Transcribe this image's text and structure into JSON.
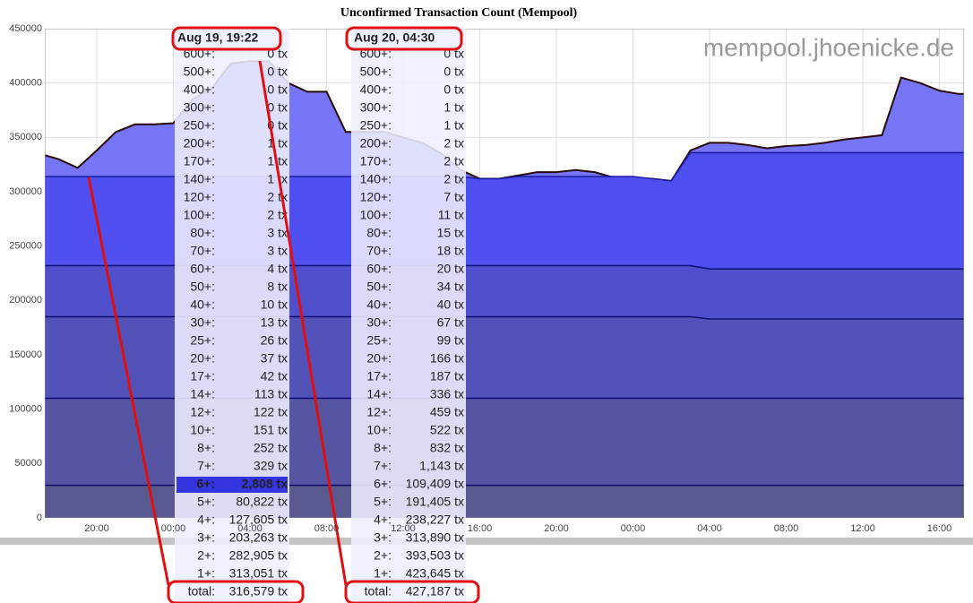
{
  "chart_data": {
    "type": "area",
    "title": "Unconfirmed Transaction Count (Mempool)",
    "watermark": "mempool.jhoenicke.de",
    "categories": [
      null,
      null,
      null,
      "20:00",
      null,
      null,
      null,
      "00:00",
      null,
      null,
      null,
      "04:00",
      null,
      null,
      null,
      "08:00",
      null,
      null,
      null,
      "12:00",
      null,
      null,
      null,
      "16:00",
      null,
      null,
      null,
      "20:00",
      null,
      null,
      null,
      "00:00",
      null,
      null,
      null,
      "04:00",
      null,
      null,
      null,
      "08:00",
      null,
      null,
      null,
      "12:00",
      null,
      null,
      null,
      "16:00",
      null
    ],
    "series": [
      {
        "color": "#7575f5",
        "line_color": "#2a0a0a",
        "values": [
          335000,
          330000,
          322000,
          338000,
          355000,
          362000,
          362000,
          363000,
          385000,
          395000,
          418000,
          420000,
          420000,
          400000,
          392000,
          392000,
          355000,
          355000,
          355000,
          350000,
          345000,
          335000,
          320000,
          312000,
          312000,
          315000,
          318000,
          318000,
          320000,
          318000,
          313000,
          313000,
          312000,
          310000,
          338000,
          345000,
          345000,
          343000,
          340000,
          342000,
          343000,
          345000,
          348000,
          350000,
          352000,
          405000,
          400000,
          393000,
          390000
        ]
      },
      {
        "color": "#4f4ff0",
        "line_color": "#1a1aa0",
        "values": [
          314000,
          314000,
          314000,
          314000,
          314000,
          314000,
          314000,
          314000,
          314000,
          314000,
          314000,
          314000,
          314000,
          314000,
          314000,
          314000,
          314000,
          314000,
          314000,
          314000,
          314000,
          314000,
          314000,
          312000,
          312000,
          314000,
          314000,
          314000,
          314000,
          314000,
          314000,
          314000,
          312000,
          310000,
          336000,
          336000,
          336000,
          336000,
          336000,
          336000,
          336000,
          336000,
          336000,
          336000,
          336000,
          336000,
          336000,
          336000,
          336000
        ]
      },
      {
        "color": "#5050cc",
        "line_color": "#10107a",
        "values": [
          232000,
          232000,
          232000,
          232000,
          232000,
          232000,
          232000,
          232000,
          232000,
          232000,
          232000,
          232000,
          232000,
          232000,
          232000,
          232000,
          232000,
          232000,
          232000,
          232000,
          232000,
          232000,
          232000,
          232000,
          232000,
          232000,
          232000,
          232000,
          232000,
          232000,
          232000,
          232000,
          232000,
          232000,
          232000,
          229000,
          229000,
          229000,
          229000,
          229000,
          229000,
          229000,
          229000,
          229000,
          229000,
          229000,
          229000,
          229000,
          229000
        ]
      },
      {
        "color": "#5252b8",
        "line_color": "#10106e",
        "values": [
          185000,
          185000,
          185000,
          185000,
          185000,
          185000,
          185000,
          185000,
          185000,
          185000,
          185000,
          185000,
          185000,
          185000,
          185000,
          185000,
          185000,
          185000,
          185000,
          185000,
          185000,
          185000,
          185000,
          185000,
          185000,
          185000,
          185000,
          185000,
          185000,
          185000,
          185000,
          185000,
          185000,
          185000,
          185000,
          183000,
          183000,
          183000,
          183000,
          183000,
          183000,
          183000,
          183000,
          183000,
          183000,
          183000,
          183000,
          183000,
          183000
        ]
      },
      {
        "color": "#5555a4",
        "line_color": "#0c0c70",
        "values": [
          110000,
          110000,
          110000,
          110000,
          110000,
          110000,
          110000,
          110000,
          110000,
          110000,
          110000,
          110000,
          110000,
          110000,
          110000,
          110000,
          110000,
          110000,
          110000,
          110000,
          110000,
          110000,
          110000,
          110000,
          110000,
          110000,
          110000,
          110000,
          110000,
          110000,
          110000,
          110000,
          110000,
          110000,
          110000,
          110000,
          110000,
          110000,
          110000,
          110000,
          110000,
          110000,
          110000,
          110000,
          110000,
          110000,
          110000,
          110000,
          110000
        ]
      },
      {
        "color": "#595990",
        "line_color": "#0a0a60",
        "values": [
          30000,
          30000,
          30000,
          30000,
          30000,
          30000,
          30000,
          30000,
          30000,
          30000,
          30000,
          30000,
          30000,
          30000,
          30000,
          30000,
          30000,
          30000,
          30000,
          30000,
          30000,
          30000,
          30000,
          30000,
          30000,
          30000,
          30000,
          30000,
          30000,
          30000,
          30000,
          30000,
          30000,
          30000,
          30000,
          30000,
          30000,
          30000,
          30000,
          30000,
          30000,
          30000,
          30000,
          30000,
          30000,
          30000,
          30000,
          30000,
          30000
        ]
      }
    ],
    "ylim": [
      0,
      450000
    ],
    "yticks": [
      0,
      50000,
      100000,
      150000,
      200000,
      250000,
      300000,
      350000,
      400000,
      450000
    ],
    "grid": true
  },
  "tooltips": [
    {
      "title": "Aug 19, 19:22",
      "highlight_row": 24,
      "rows": [
        [
          "600+:",
          "0 tx"
        ],
        [
          "500+:",
          "0 tx"
        ],
        [
          "400+:",
          "0 tx"
        ],
        [
          "300+:",
          "0 tx"
        ],
        [
          "250+:",
          "0 tx"
        ],
        [
          "200+:",
          "1 tx"
        ],
        [
          "170+:",
          "1 tx"
        ],
        [
          "140+:",
          "1 tx"
        ],
        [
          "120+:",
          "2 tx"
        ],
        [
          "100+:",
          "2 tx"
        ],
        [
          "80+:",
          "3 tx"
        ],
        [
          "70+:",
          "3 tx"
        ],
        [
          "60+:",
          "4 tx"
        ],
        [
          "50+:",
          "8 tx"
        ],
        [
          "40+:",
          "10 tx"
        ],
        [
          "30+:",
          "13 tx"
        ],
        [
          "25+:",
          "26 tx"
        ],
        [
          "20+:",
          "37 tx"
        ],
        [
          "17+:",
          "42 tx"
        ],
        [
          "14+:",
          "113 tx"
        ],
        [
          "12+:",
          "122 tx"
        ],
        [
          "10+:",
          "151 tx"
        ],
        [
          "8+:",
          "252 tx"
        ],
        [
          "7+:",
          "329 tx"
        ],
        [
          "6+:",
          "2,808 tx"
        ],
        [
          "5+:",
          "80,822 tx"
        ],
        [
          "4+:",
          "127,605 tx"
        ],
        [
          "3+:",
          "203,263 tx"
        ],
        [
          "2+:",
          "282,905 tx"
        ],
        [
          "1+:",
          "313,051 tx"
        ],
        [
          "total:",
          "316,579 tx"
        ]
      ]
    },
    {
      "title": "Aug 20, 04:30",
      "rows": [
        [
          "600+:",
          "0 tx"
        ],
        [
          "500+:",
          "0 tx"
        ],
        [
          "400+:",
          "0 tx"
        ],
        [
          "300+:",
          "1 tx"
        ],
        [
          "250+:",
          "1 tx"
        ],
        [
          "200+:",
          "2 tx"
        ],
        [
          "170+:",
          "2 tx"
        ],
        [
          "140+:",
          "2 tx"
        ],
        [
          "120+:",
          "7 tx"
        ],
        [
          "100+:",
          "11 tx"
        ],
        [
          "80+:",
          "15 tx"
        ],
        [
          "70+:",
          "18 tx"
        ],
        [
          "60+:",
          "20 tx"
        ],
        [
          "50+:",
          "34 tx"
        ],
        [
          "40+:",
          "40 tx"
        ],
        [
          "30+:",
          "67 tx"
        ],
        [
          "25+:",
          "99 tx"
        ],
        [
          "20+:",
          "166 tx"
        ],
        [
          "17+:",
          "187 tx"
        ],
        [
          "14+:",
          "336 tx"
        ],
        [
          "12+:",
          "459 tx"
        ],
        [
          "10+:",
          "522 tx"
        ],
        [
          "8+:",
          "832 tx"
        ],
        [
          "7+:",
          "1,143 tx"
        ],
        [
          "6+:",
          "109,409 tx"
        ],
        [
          "5+:",
          "191,405 tx"
        ],
        [
          "4+:",
          "238,227 tx"
        ],
        [
          "3+:",
          "313,890 tx"
        ],
        [
          "2+:",
          "393,503 tx"
        ],
        [
          "1+:",
          "423,645 tx"
        ],
        [
          "total:",
          "427,187 tx"
        ]
      ]
    }
  ]
}
